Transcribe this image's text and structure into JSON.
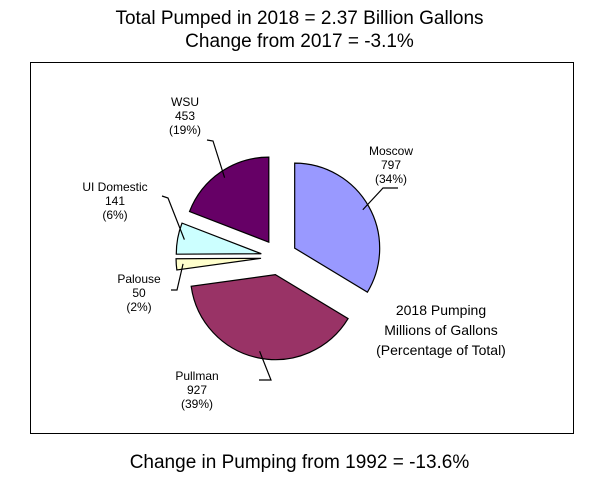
{
  "header": {
    "title_line1": "Total Pumped in 2018 = 2.37 Billion Gallons",
    "title_line2": "Change from 2017 = -3.1%"
  },
  "footer": {
    "text": "Change in Pumping from 1992 = -13.6%"
  },
  "chart_data": {
    "type": "pie",
    "title": "",
    "annotation": [
      "2018 Pumping",
      "Millions of Gallons",
      "(Percentage of Total)"
    ],
    "exploded": true,
    "slices": [
      {
        "name": "Moscow",
        "value": 797,
        "value_label": "797",
        "percent_label": "(34%)",
        "color": "#9999ff"
      },
      {
        "name": "Pullman",
        "value": 927,
        "value_label": "927",
        "percent_label": "(39%)",
        "color": "#993366"
      },
      {
        "name": "Palouse",
        "value": 50,
        "value_label": "50",
        "percent_label": "(2%)",
        "color": "#ffffcc"
      },
      {
        "name": "UI Domestic",
        "value": 141,
        "value_label": "141",
        "percent_label": "(6%)",
        "color": "#ccffff"
      },
      {
        "name": "WSU",
        "value": 453,
        "value_label": "453",
        "percent_label": "(19%)",
        "color": "#660066"
      }
    ]
  }
}
